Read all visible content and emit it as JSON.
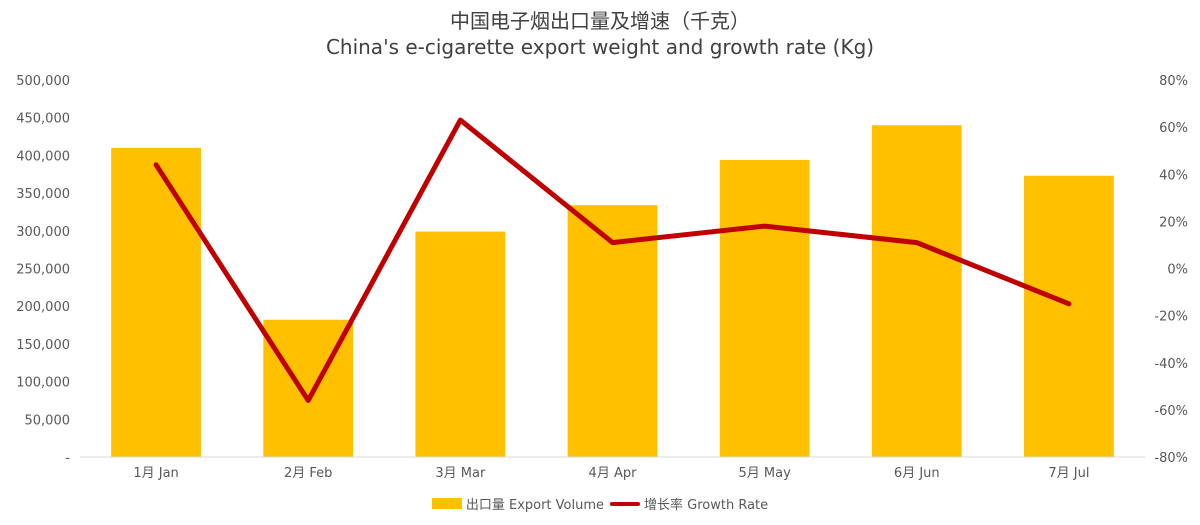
{
  "chart_data": {
    "type": "bar",
    "title": "中国电子烟出口量及增速（千克）",
    "subtitle": "China's e-cigarette export weight and growth rate (Kg)",
    "categories": [
      "1月 Jan",
      "2月 Feb",
      "3月 Mar",
      "4月 Apr",
      "5月 May",
      "6月 Jun",
      "7月 Jul"
    ],
    "series": [
      {
        "name": "出口量 Export Volume",
        "type": "bar",
        "axis": "left",
        "values": [
          410000,
          182000,
          299000,
          334000,
          394000,
          440000,
          373000
        ]
      },
      {
        "name": "增长率 Growth Rate",
        "type": "line",
        "axis": "right",
        "values": [
          44,
          -56,
          63,
          11,
          18,
          11,
          -15
        ]
      }
    ],
    "y_left": {
      "min": 0,
      "max": 500000,
      "step": 50000,
      "ticks": [
        "-",
        "50,000",
        "100,000",
        "150,000",
        "200,000",
        "250,000",
        "300,000",
        "350,000",
        "400,000",
        "450,000",
        "500,000"
      ]
    },
    "y_right": {
      "min": -80,
      "max": 80,
      "step": 20,
      "ticks": [
        "-80%",
        "-60%",
        "-40%",
        "-20%",
        "0%",
        "20%",
        "40%",
        "60%",
        "80%"
      ]
    },
    "grid": false,
    "legend_position": "bottom",
    "colors": {
      "bar": "#FFC000",
      "line": "#C00000",
      "axis": "#D9D9D9"
    }
  }
}
